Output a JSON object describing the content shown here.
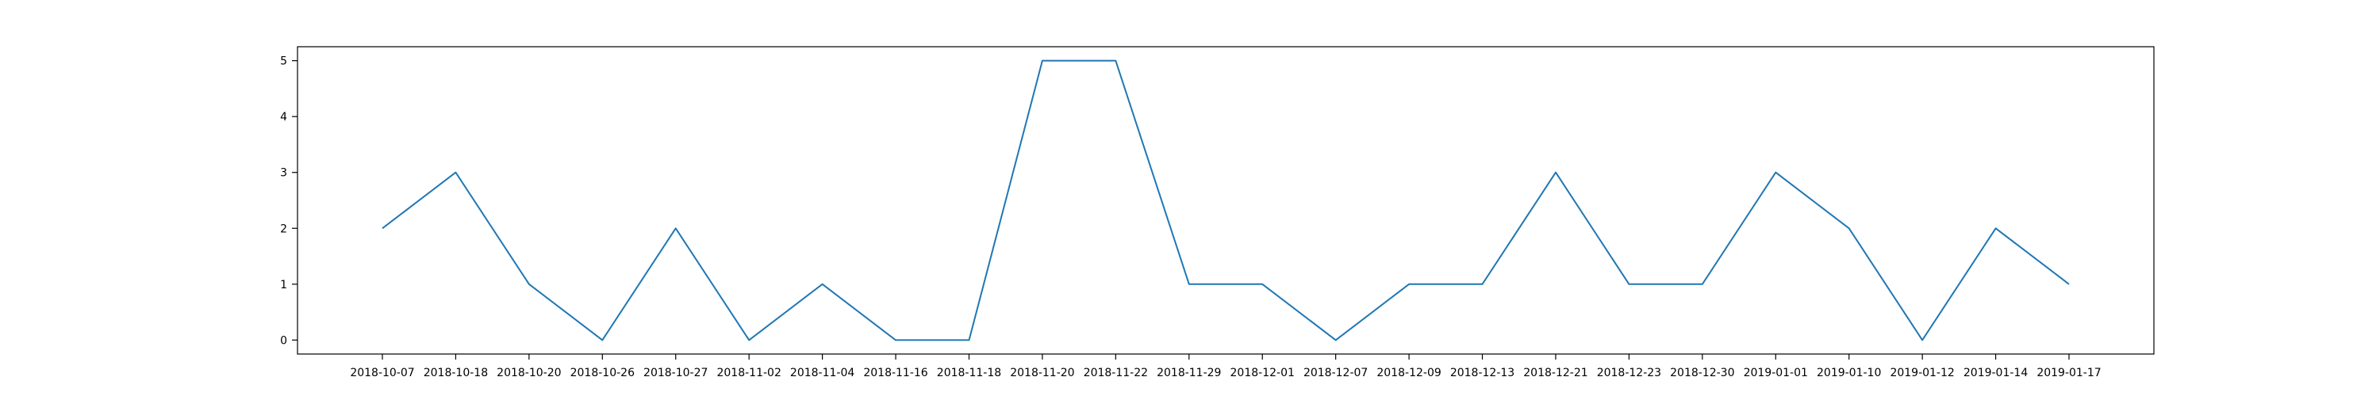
{
  "chart_data": {
    "type": "line",
    "categories": [
      "2018-10-07",
      "2018-10-18",
      "2018-10-20",
      "2018-10-26",
      "2018-10-27",
      "2018-11-02",
      "2018-11-04",
      "2018-11-16",
      "2018-11-18",
      "2018-11-20",
      "2018-11-22",
      "2018-11-29",
      "2018-12-01",
      "2018-12-07",
      "2018-12-09",
      "2018-12-13",
      "2018-12-21",
      "2018-12-23",
      "2018-12-30",
      "2019-01-01",
      "2019-01-10",
      "2019-01-12",
      "2019-01-14",
      "2019-01-17"
    ],
    "series": [
      {
        "values": [
          2,
          3,
          1,
          0,
          2,
          0,
          1,
          0,
          0,
          5,
          5,
          1,
          1,
          0,
          1,
          1,
          3,
          1,
          1,
          3,
          2,
          0,
          2,
          1
        ],
        "color": "#1f77b4"
      }
    ],
    "yticks": [
      "0",
      "1",
      "2",
      "3",
      "4",
      "5"
    ],
    "ylim": [
      -0.25,
      5.25
    ],
    "grid": false,
    "title": "",
    "xlabel": "",
    "ylabel": ""
  }
}
